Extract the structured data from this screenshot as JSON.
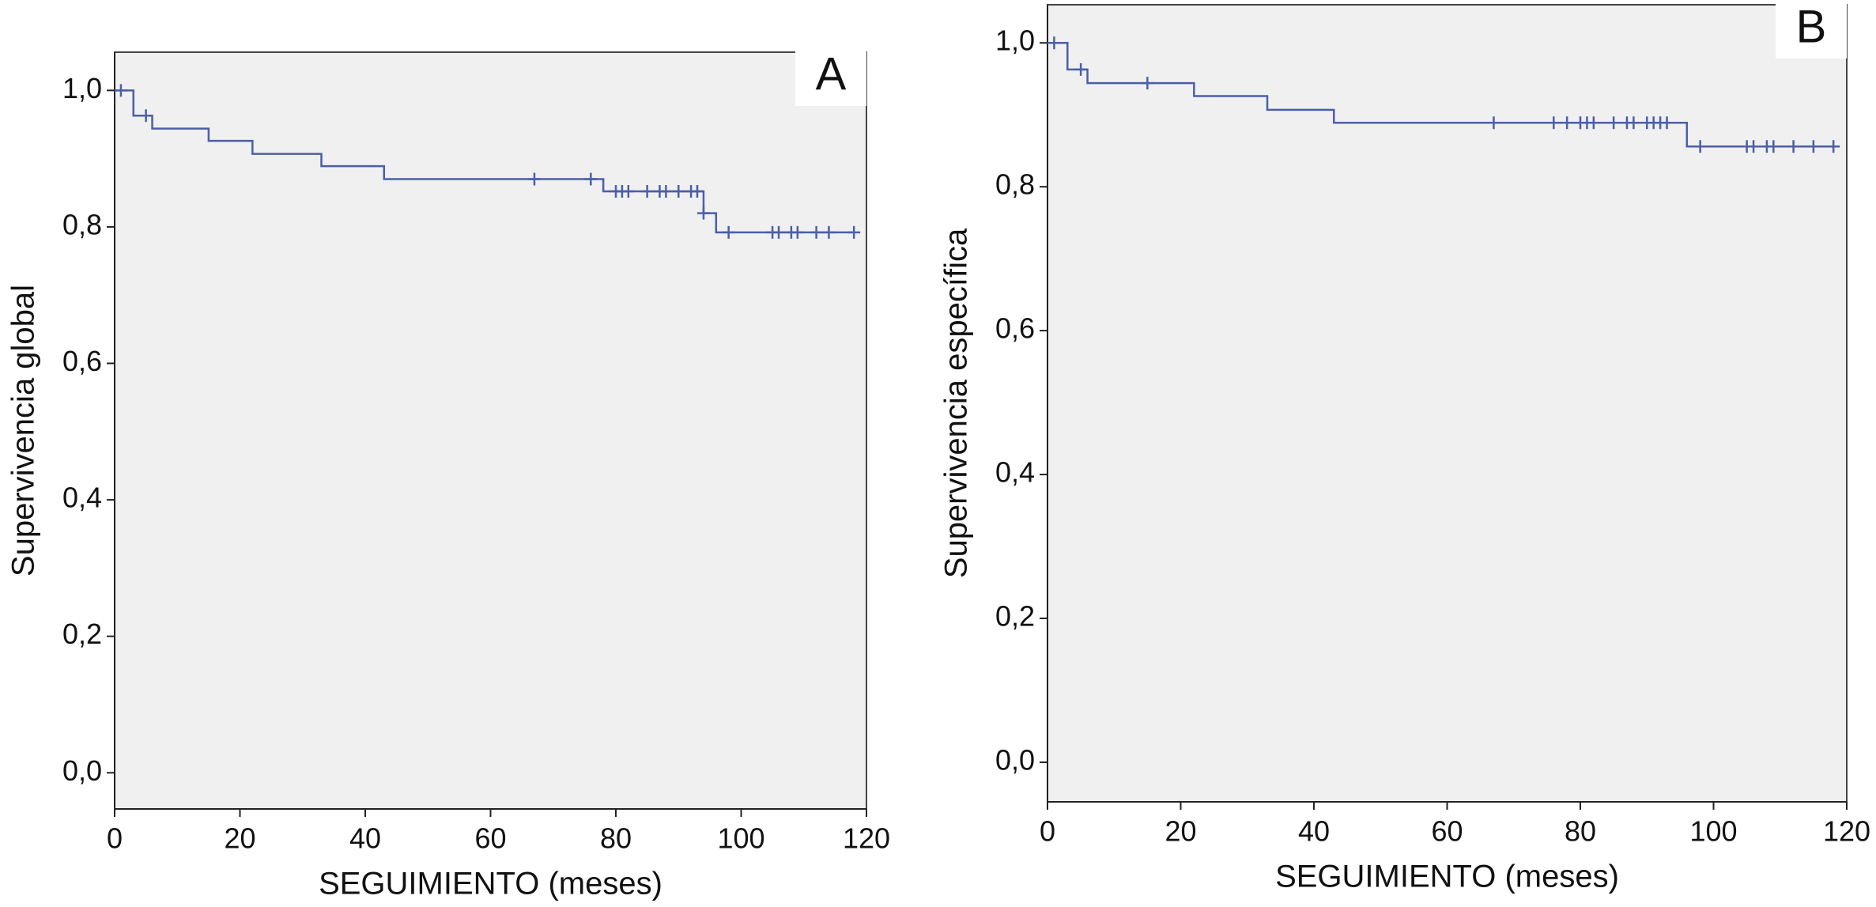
{
  "chart_data": [
    {
      "type": "step",
      "panel_label": "A",
      "ylabel": "Supervivencia global",
      "xlabel": "SEGUIMIENTO (meses)",
      "color": "#4a5fa8",
      "x": [
        0,
        3,
        6,
        15,
        22,
        33,
        43,
        78,
        94,
        96
      ],
      "values": [
        1.0,
        0.963,
        0.944,
        0.926,
        0.907,
        0.889,
        0.87,
        0.852,
        0.82,
        0.792
      ],
      "censored": {
        "x": [
          1,
          5,
          67,
          76,
          80,
          81,
          82,
          85,
          87,
          88,
          90,
          92,
          93,
          94,
          98,
          105,
          106,
          108,
          109,
          112,
          114,
          118
        ],
        "values": [
          1.0,
          0.963,
          0.87,
          0.87,
          0.852,
          0.852,
          0.852,
          0.852,
          0.852,
          0.852,
          0.852,
          0.852,
          0.852,
          0.82,
          0.792,
          0.792,
          0.792,
          0.792,
          0.792,
          0.792,
          0.792,
          0.792
        ]
      },
      "xlim": [
        0,
        120
      ],
      "ylim": [
        -0.053,
        1.056
      ],
      "xticks": [
        0,
        20,
        40,
        60,
        80,
        100,
        120
      ],
      "yticks": [
        {
          "value": 0,
          "label": "0,0"
        },
        {
          "value": 0.2,
          "label": "0,2"
        },
        {
          "value": 0.4,
          "label": "0,4"
        },
        {
          "value": 0.6,
          "label": "0,6"
        },
        {
          "value": 0.8,
          "label": "0,8"
        },
        {
          "value": 1.0,
          "label": "1,0"
        }
      ]
    },
    {
      "type": "step",
      "panel_label": "B",
      "ylabel": "Supervivencia específica",
      "xlabel": "SEGUIMIENTO (meses)",
      "color": "#4a5fa8",
      "x": [
        0,
        3,
        6,
        22,
        33,
        43,
        96
      ],
      "values": [
        1.0,
        0.963,
        0.944,
        0.926,
        0.907,
        0.889,
        0.856
      ],
      "censored": {
        "x": [
          1,
          5,
          15,
          67,
          76,
          78,
          80,
          81,
          82,
          85,
          87,
          88,
          90,
          91,
          92,
          93,
          98,
          105,
          106,
          108,
          109,
          112,
          115,
          118
        ],
        "values": [
          1.0,
          0.963,
          0.944,
          0.889,
          0.889,
          0.889,
          0.889,
          0.889,
          0.889,
          0.889,
          0.889,
          0.889,
          0.889,
          0.889,
          0.889,
          0.889,
          0.856,
          0.856,
          0.856,
          0.856,
          0.856,
          0.856,
          0.856,
          0.856
        ]
      },
      "xlim": [
        0,
        120
      ],
      "ylim": [
        -0.055,
        1.053
      ],
      "xticks": [
        0,
        20,
        40,
        60,
        80,
        100,
        120
      ],
      "yticks": [
        {
          "value": 0,
          "label": "0,0"
        },
        {
          "value": 0.2,
          "label": "0,2"
        },
        {
          "value": 0.4,
          "label": "0,4"
        },
        {
          "value": 0.6,
          "label": "0,6"
        },
        {
          "value": 0.8,
          "label": "0,8"
        },
        {
          "value": 1.0,
          "label": "1,0"
        }
      ]
    }
  ]
}
